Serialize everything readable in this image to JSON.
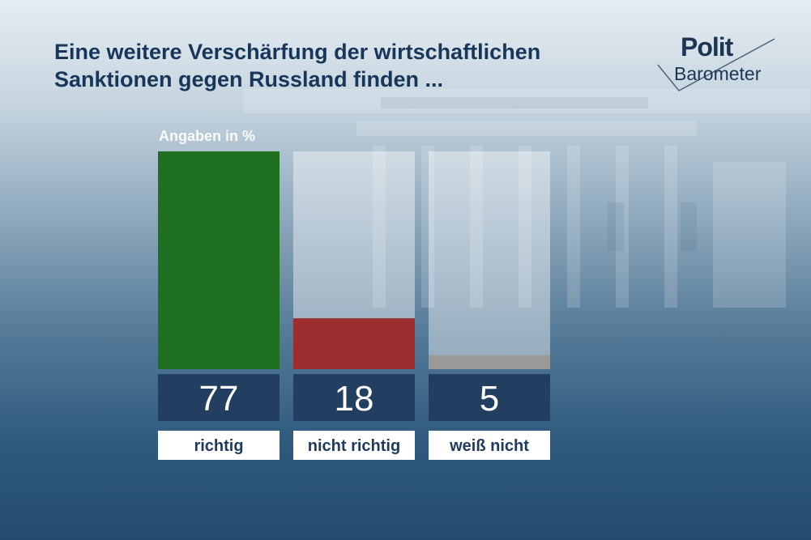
{
  "title_lines": [
    "Eine weitere Verschärfung der wirtschaftlichen",
    "Sanktionen gegen Russland finden  ..."
  ],
  "logo": {
    "line1": "Polit",
    "line2": "Barometer"
  },
  "unit_note": "Angaben in %",
  "colors": {
    "title": "#17365a",
    "track": "#ffffff",
    "value_box": "#223f62",
    "label_box": "#ffffff",
    "label_text": "#1f3a5c"
  },
  "chart_data": {
    "type": "bar",
    "categories": [
      "richtig",
      "nicht richtig",
      "weiß nicht"
    ],
    "values": [
      77,
      18,
      5
    ],
    "value_labels": [
      "77",
      "18",
      "5"
    ],
    "colors": [
      "#1e6f1f",
      "#9b2d2f",
      "#9a9a98"
    ],
    "ylim": [
      0,
      77
    ],
    "grid": false,
    "legend": "none"
  }
}
